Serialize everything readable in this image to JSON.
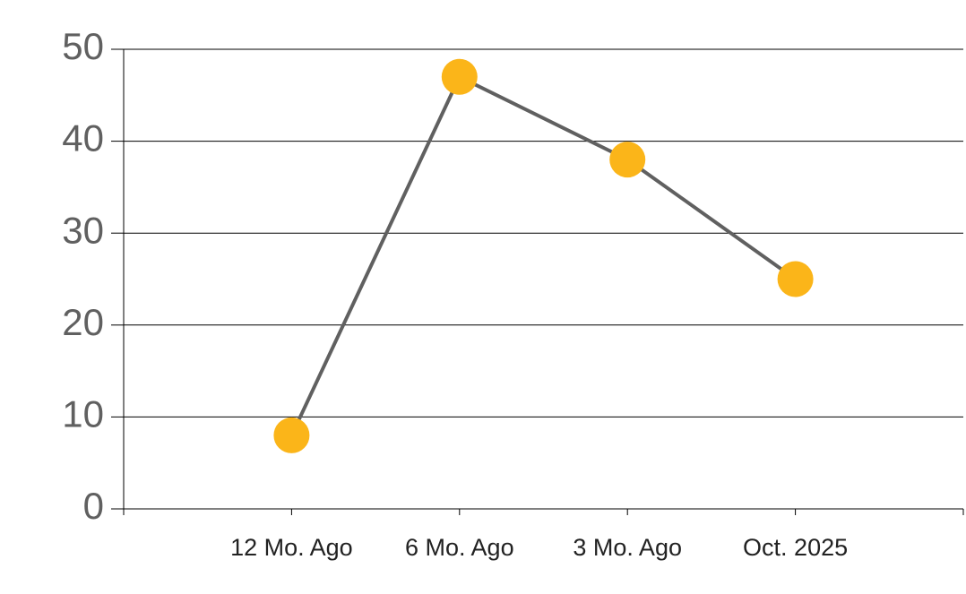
{
  "chart_data": {
    "type": "line",
    "categories": [
      "12 Mo. Ago",
      "6 Mo. Ago",
      "3 Mo. Ago",
      "Oct. 2025"
    ],
    "series": [
      {
        "values": [
          8,
          47,
          38,
          25
        ],
        "color": "#606060",
        "marker_color": "#fbb519"
      }
    ],
    "ylim": [
      0,
      50
    ],
    "yticks": [
      0,
      10,
      20,
      30,
      40,
      50
    ],
    "grid": true
  }
}
